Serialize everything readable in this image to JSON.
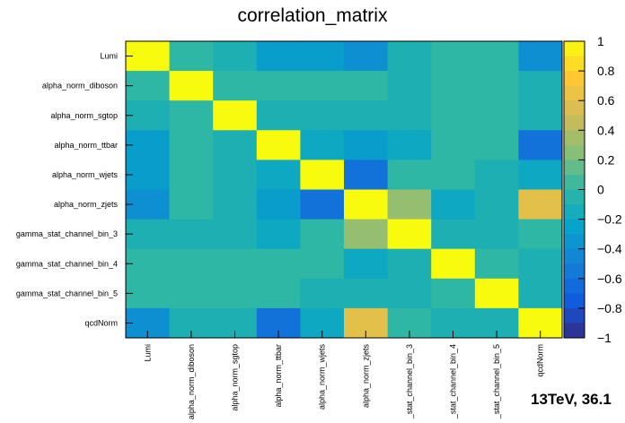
{
  "chart_data": {
    "type": "heatmap",
    "title": "correlation_matrix",
    "labels": [
      "Lumi",
      "alpha_norm_diboson",
      "alpha_norm_sgtop",
      "alpha_norm_ttbar",
      "alpha_norm_wjets",
      "alpha_norm_zjets",
      "gamma_stat_channel_bin_3",
      "gamma_stat_channel_bin_4",
      "gamma_stat_channel_bin_5",
      "qcdNorm"
    ],
    "x_tick_labels": [
      "Lumi",
      "alpha_norm_diboson",
      "alpha_norm_sgtop",
      "alpha_norm_ttbar",
      "alpha_norm_wjets",
      "alpha_norm_zjets",
      "_stat_channel_bin_3",
      "_stat_channel_bin_4",
      "_stat_channel_bin_5",
      "qcdNorm"
    ],
    "matrix": [
      [
        1.0,
        0.0,
        -0.1,
        -0.3,
        -0.3,
        -0.4,
        -0.1,
        0.0,
        0.0,
        -0.4
      ],
      [
        0.0,
        1.0,
        0.0,
        0.0,
        0.0,
        0.0,
        -0.1,
        0.0,
        0.0,
        -0.1
      ],
      [
        -0.1,
        0.0,
        1.0,
        -0.1,
        -0.1,
        -0.1,
        -0.1,
        0.0,
        0.0,
        -0.1
      ],
      [
        -0.3,
        0.0,
        -0.1,
        1.0,
        -0.2,
        -0.3,
        -0.2,
        0.0,
        0.0,
        -0.6
      ],
      [
        -0.3,
        0.0,
        -0.1,
        -0.2,
        1.0,
        -0.6,
        0.0,
        0.0,
        -0.1,
        -0.2
      ],
      [
        -0.4,
        0.0,
        -0.1,
        -0.3,
        -0.6,
        1.0,
        0.3,
        -0.2,
        -0.1,
        0.6
      ],
      [
        -0.1,
        -0.1,
        -0.1,
        -0.2,
        0.0,
        0.3,
        1.0,
        -0.1,
        -0.1,
        0.0
      ],
      [
        0.0,
        0.0,
        0.0,
        0.0,
        0.0,
        -0.2,
        -0.1,
        1.0,
        0.0,
        -0.1
      ],
      [
        0.0,
        0.0,
        0.0,
        0.0,
        -0.1,
        -0.1,
        -0.1,
        0.0,
        1.0,
        -0.1
      ],
      [
        -0.4,
        -0.1,
        -0.1,
        -0.6,
        -0.2,
        0.6,
        0.0,
        -0.1,
        -0.1,
        1.0
      ]
    ],
    "zlim": [
      -1,
      1
    ],
    "colorbar_ticks": [
      "1",
      "0.8",
      "0.6",
      "0.4",
      "0.2",
      "0",
      "−0.2",
      "−0.4",
      "−0.6",
      "−0.8",
      "−1"
    ],
    "colorbar_values": [
      1,
      0.8,
      0.6,
      0.4,
      0.2,
      0,
      -0.2,
      -0.4,
      -0.6,
      -0.8,
      -1
    ],
    "colormap": [
      "#352a87",
      "#0f5cdd",
      "#1481d6",
      "#06a4ca",
      "#2eb7a4",
      "#87bf77",
      "#d1bb59",
      "#fec832",
      "#f9fb0e"
    ],
    "annotation": "13TeV, 36.1"
  }
}
